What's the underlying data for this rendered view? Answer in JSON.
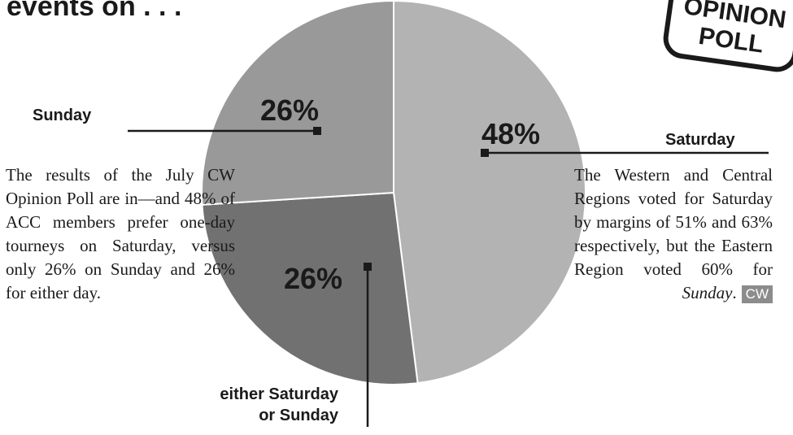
{
  "headline": "events on . . .",
  "stamp": {
    "line1": "OPINION",
    "line2": "POLL"
  },
  "chart_data": {
    "type": "pie",
    "title": "",
    "slices": [
      {
        "label": "Saturday",
        "value": 48,
        "display": "48%",
        "color": "#b3b3b3"
      },
      {
        "label": "either Saturday or Sunday",
        "value": 26,
        "display": "26%",
        "color": "#717171"
      },
      {
        "label": "Sunday",
        "value": 26,
        "display": "26%",
        "color": "#999999"
      }
    ]
  },
  "labels": {
    "sunday": "Sunday",
    "saturday": "Saturday",
    "either_line1": "either Saturday",
    "either_line2": "or Sunday"
  },
  "left_text": "The results of the July CW Opinion Poll are in—and 48% of ACC members prefer one-day tourneys on Saturday, versus only 26% on Sunday and 26% for either day.",
  "right_text": {
    "before": "The Western and Central Regions voted for Saturday by margins of 51% and 63% respectively, but the Eastern Region voted 60% for ",
    "italic": "Sunday",
    "after": ".",
    "badge": "CW"
  }
}
